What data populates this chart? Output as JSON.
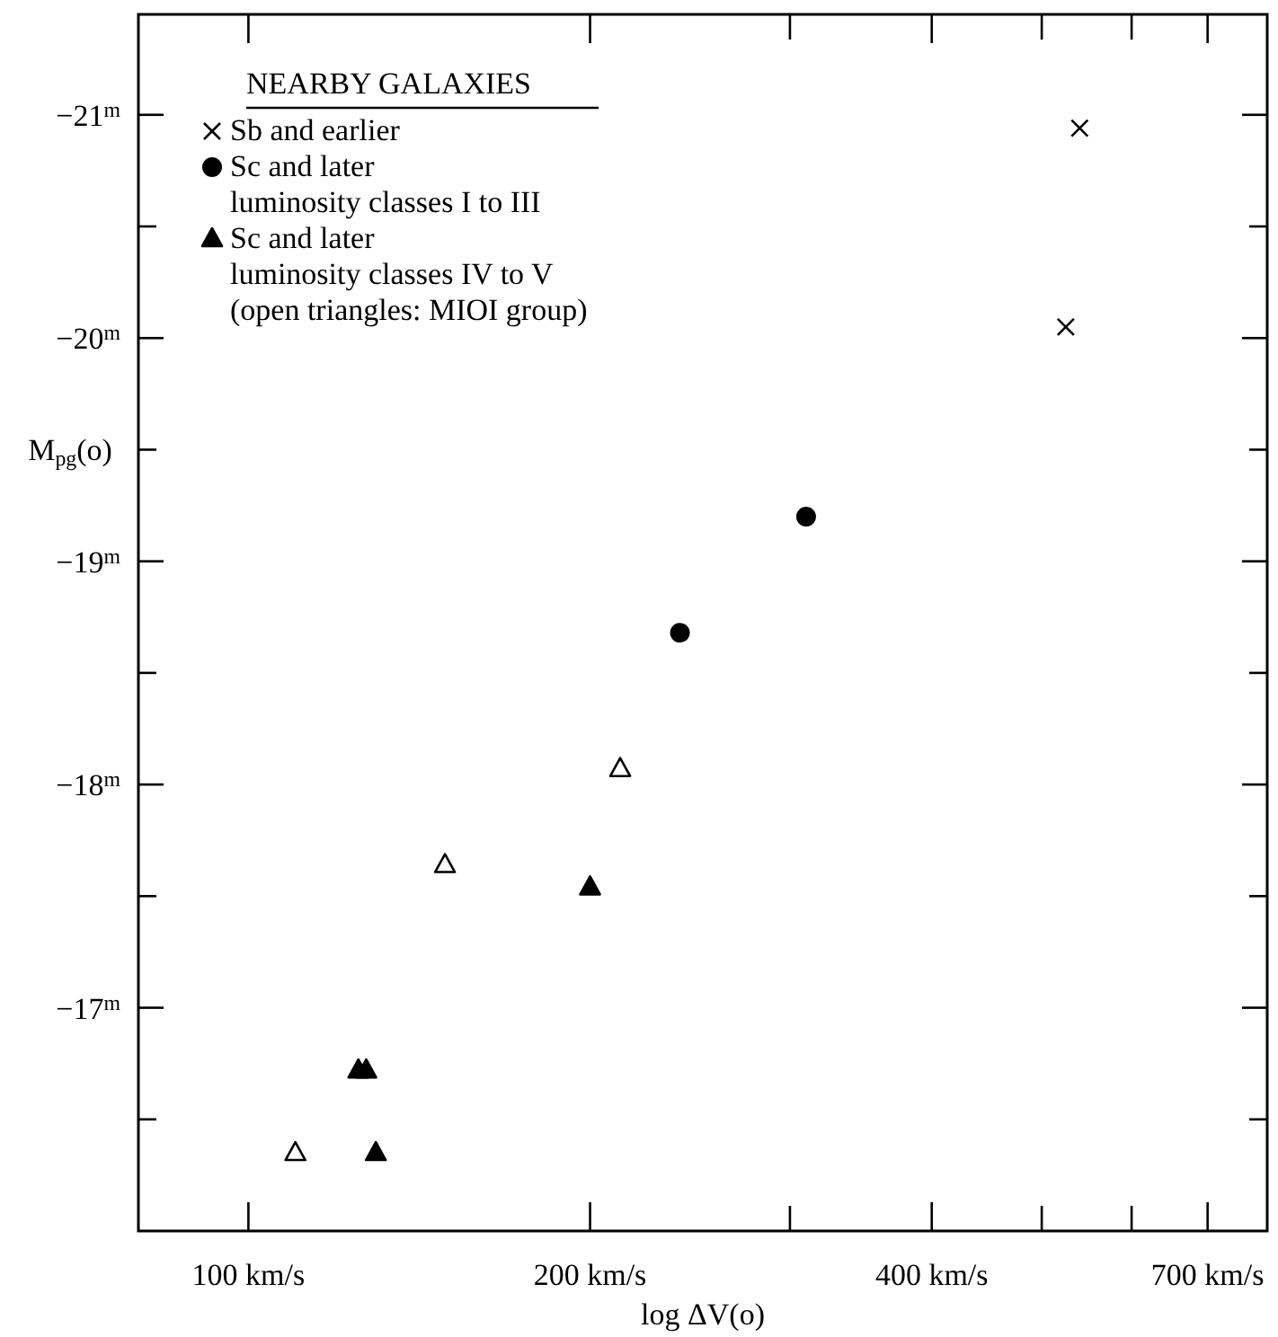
{
  "chart_data": {
    "type": "scatter",
    "xlabel": "log ΔV(o)",
    "ylabel": "M$_{pg}$(o)",
    "legend_title": "NEARBY GALAXIES",
    "log": "x",
    "xlim": [
      80,
      790
    ],
    "ylim": [
      -16,
      -21.45
    ],
    "xticks": [
      {
        "value": 100,
        "label": "100 km/s"
      },
      {
        "value": 200,
        "label": "200 km/s"
      },
      {
        "value": 300,
        "label": null
      },
      {
        "value": 400,
        "label": "400 km/s"
      },
      {
        "value": 500,
        "label": null
      },
      {
        "value": 600,
        "label": null
      },
      {
        "value": 700,
        "label": "700 km/s"
      }
    ],
    "yticks": [
      {
        "value": -21,
        "label": "−21$^{m}$"
      },
      {
        "value": -20.5,
        "label": null
      },
      {
        "value": -20,
        "label": "−20$^{m}$"
      },
      {
        "value": -19.5,
        "label": null
      },
      {
        "value": -19,
        "label": "−19$^{m}$"
      },
      {
        "value": -18.5,
        "label": null
      },
      {
        "value": -18,
        "label": "−18$^{m}$"
      },
      {
        "value": -17.5,
        "label": null
      },
      {
        "value": -17,
        "label": "−17$^{m}$"
      },
      {
        "value": -16.5,
        "label": null
      }
    ],
    "grid": false,
    "legend": "top left",
    "series": [
      {
        "name": "Sb and earlier",
        "color": "#000000",
        "marker": "cross",
        "x": [
          540,
          525
        ],
        "values": [
          -20.94,
          -20.05
        ]
      },
      {
        "name": "Sc and later\nluminosity classes I to III",
        "color": "#000000",
        "marker": "circle",
        "x": [
          310,
          240
        ],
        "values": [
          -19.2,
          -18.68
        ]
      },
      {
        "name": "Sc and later\nluminosity classes IV to V\n(open triangles: MIOI group)",
        "color": "#000000",
        "marker": "triangle",
        "x": [
          200,
          125,
          127,
          129.5
        ],
        "values": [
          -17.54,
          -16.72,
          -16.72,
          -16.35
        ]
      },
      {
        "color": "#000000",
        "marker": "triangle-open",
        "x": [
          212.6,
          149,
          110
        ],
        "values": [
          -18.07,
          -17.64,
          -16.35
        ]
      }
    ]
  }
}
